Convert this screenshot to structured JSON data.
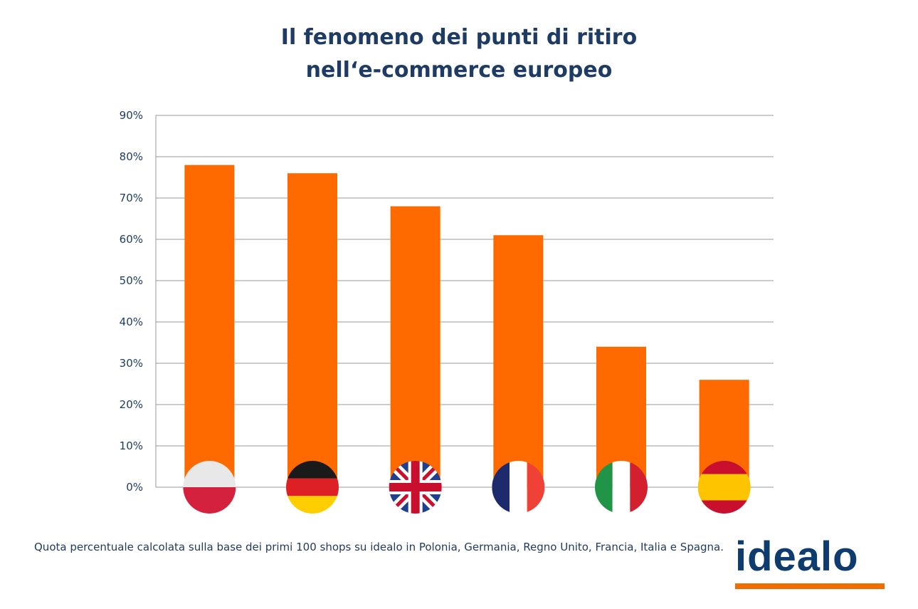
{
  "title_line1": "Il fenomeno dei punti di ritiro",
  "title_line2": "nell‘e-commerce europeo",
  "footnote": "Quota percentuale calcolata sulla base dei primi 100 shops su idealo in Polonia, Germania, Regno Unito, Francia, Italia e Spagna.",
  "logo_text": "idealo",
  "colors": {
    "bar": "#ff6a00",
    "grid": "#9a9a9a",
    "text": "#1e3c63",
    "logo_blue": "#0e3c6e",
    "logo_orange": "#f06e00"
  },
  "chart_data": {
    "type": "bar",
    "title": "Il fenomeno dei punti di ritiro nell‘e-commerce europeo",
    "xlabel": "",
    "ylabel": "",
    "categories": [
      "Polonia",
      "Germania",
      "Regno Unito",
      "Francia",
      "Italia",
      "Spagna"
    ],
    "category_icons": [
      "flag-poland-icon",
      "flag-germany-icon",
      "flag-uk-icon",
      "flag-france-icon",
      "flag-italy-icon",
      "flag-spain-icon"
    ],
    "values": [
      78,
      76,
      68,
      61,
      34,
      26
    ],
    "ylim": [
      0,
      90
    ],
    "yticks": [
      "0%",
      "10%",
      "20%",
      "30%",
      "40%",
      "50%",
      "60%",
      "70%",
      "80%",
      "90%"
    ],
    "grid": true,
    "legend": "none"
  }
}
